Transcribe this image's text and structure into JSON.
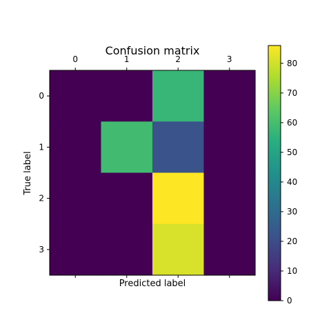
{
  "chart_data": {
    "type": "heatmap",
    "title": "Confusion matrix",
    "xlabel": "Predicted label",
    "ylabel": "True label",
    "x_categories": [
      "0",
      "1",
      "2",
      "3"
    ],
    "y_categories": [
      "0",
      "1",
      "2",
      "3"
    ],
    "x_ticks_position": "top",
    "values": [
      [
        0,
        0,
        57,
        0
      ],
      [
        0,
        59,
        22,
        0
      ],
      [
        0,
        0,
        86,
        0
      ],
      [
        0,
        0,
        81,
        0
      ]
    ],
    "colormap": "viridis",
    "colorbar": {
      "range": [
        0,
        86
      ],
      "ticks": [
        "0",
        "10",
        "20",
        "30",
        "40",
        "50",
        "60",
        "70",
        "80"
      ]
    },
    "grid": false
  }
}
